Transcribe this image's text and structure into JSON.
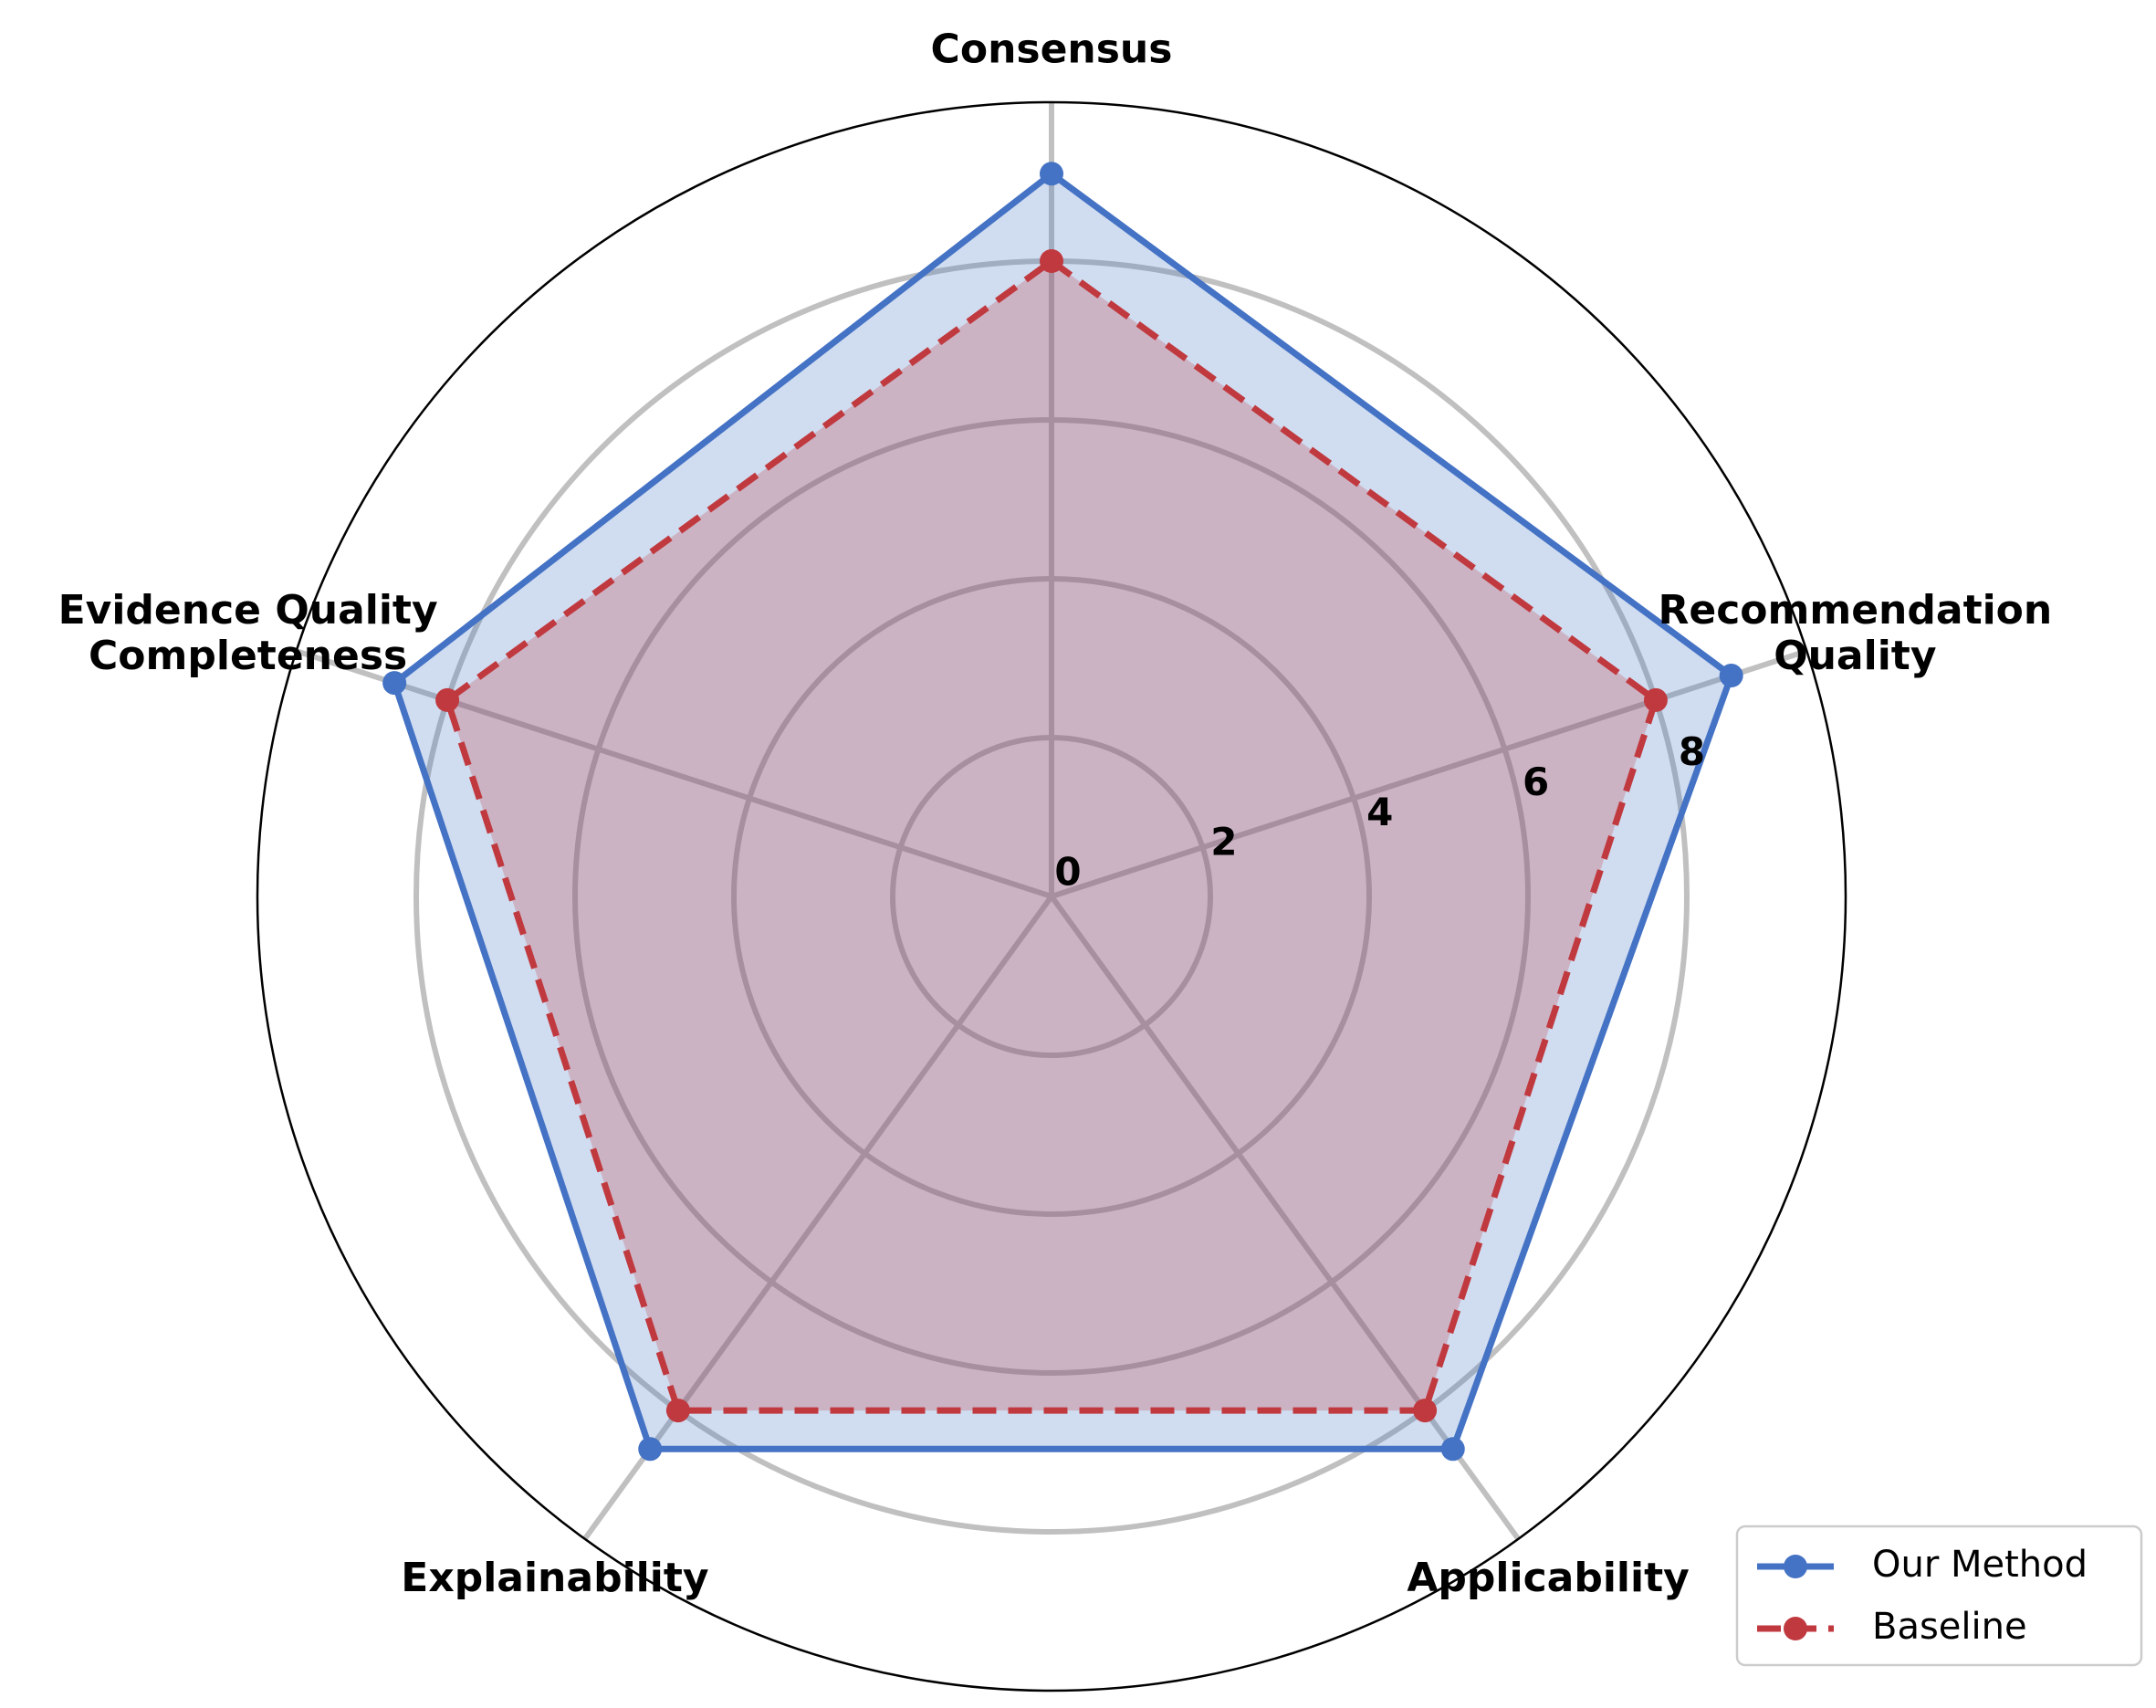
{
  "chart_data": {
    "type": "radar",
    "categories": [
      "Consensus",
      "Recommendation Quality",
      "Applicability",
      "Explainability",
      "Evidence Quality Completeness"
    ],
    "category_lines": [
      [
        "Consensus"
      ],
      [
        "Recommendation",
        "Quality"
      ],
      [
        "Applicability"
      ],
      [
        "Explainability"
      ],
      [
        "Evidence Quality",
        "Completeness"
      ]
    ],
    "rlim": [
      0,
      10
    ],
    "rticks": [
      0,
      2,
      4,
      6,
      8
    ],
    "rtick_labels": [
      "0",
      "2",
      "4",
      "6",
      "8"
    ],
    "grid": true,
    "legend_position": "bottom-right",
    "series": [
      {
        "name": "Our Method",
        "values": [
          9.1,
          9.0,
          8.6,
          8.6,
          8.7
        ],
        "color": "#4472c4",
        "line_style": "solid",
        "fill": true,
        "fill_color": "#4472c4"
      },
      {
        "name": "Baseline",
        "values": [
          8.0,
          8.0,
          8.0,
          8.0,
          8.0
        ],
        "color": "#c0393e",
        "line_style": "dashed",
        "fill": true,
        "fill_color": "#c0393e"
      }
    ]
  }
}
